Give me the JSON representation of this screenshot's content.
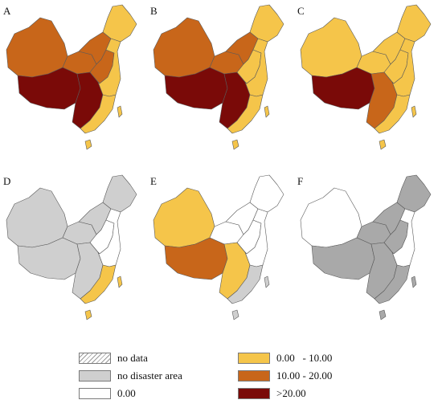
{
  "panels": [
    {
      "label": "A",
      "fill": {
        "west": "#c8661a",
        "xinjiang": "#c8661a",
        "tibet": "#7a0a08",
        "north": "#c8661a",
        "northeast": "#f5c54a",
        "central": "#c8661a",
        "east": "#f5c54a",
        "south": "#f5c54a",
        "southwest": "#7a0a08",
        "islands": "#f5c54a"
      }
    },
    {
      "label": "B",
      "fill": {
        "west": "#c8661a",
        "xinjiang": "#c8661a",
        "tibet": "#7a0a08",
        "north": "#c8661a",
        "northeast": "#f5c54a",
        "central": "#f5c54a",
        "east": "#f5c54a",
        "south": "#f5c54a",
        "southwest": "#7a0a08",
        "islands": "#f5c54a"
      }
    },
    {
      "label": "C",
      "fill": {
        "west": "#f5c54a",
        "xinjiang": "#f5c54a",
        "tibet": "#7a0a08",
        "north": "#f5c54a",
        "northeast": "#f5c54a",
        "central": "#f5c54a",
        "east": "#f5c54a",
        "south": "#f5c54a",
        "southwest": "#c8661a",
        "islands": "#f5c54a"
      }
    },
    {
      "label": "D",
      "fill": {
        "west": "#cfcfcf",
        "xinjiang": "#cfcfcf",
        "tibet": "#cfcfcf",
        "north": "#cfcfcf",
        "northeast": "#cfcfcf",
        "central": "#ffffff",
        "east": "#ffffff",
        "south": "#f5c54a",
        "southwest": "#cfcfcf",
        "islands": "#f5c54a"
      }
    },
    {
      "label": "E",
      "fill": {
        "west": "#ffffff",
        "xinjiang": "#f5c54a",
        "tibet": "#c8661a",
        "north": "#ffffff",
        "northeast": "#ffffff",
        "central": "#ffffff",
        "east": "#ffffff",
        "south": "#cfcfcf",
        "southwest": "#f5c54a",
        "islands": "#cfcfcf"
      }
    },
    {
      "label": "F",
      "fill": {
        "west": "#a9a9a9",
        "xinjiang": "#ffffff",
        "tibet": "#a9a9a9",
        "north": "#a9a9a9",
        "northeast": "#a9a9a9",
        "central": "#a9a9a9",
        "east": "#ffffff",
        "south": "#a9a9a9",
        "southwest": "#a9a9a9",
        "islands": "#a9a9a9"
      }
    }
  ],
  "legend": {
    "left": [
      {
        "label": "no data",
        "style": "hatch"
      },
      {
        "label": "no disaster area",
        "color": "#cfcfcf"
      },
      {
        "label": "0.00",
        "color": "#ffffff"
      }
    ],
    "right": [
      {
        "label": "0.00   - 10.00",
        "color": "#f5c54a"
      },
      {
        "label": "10.00 - 20.00",
        "color": "#c8661a"
      },
      {
        "label": ">20.00",
        "color": "#7a0a08"
      }
    ]
  }
}
